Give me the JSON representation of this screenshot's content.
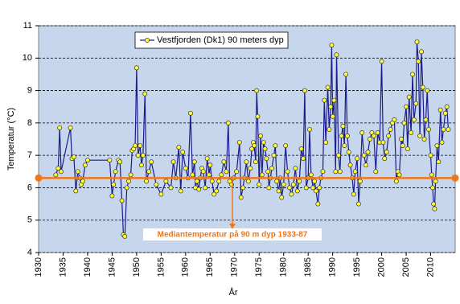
{
  "chart_data": {
    "type": "line",
    "x_label": "År",
    "y_label": "Temperatur (°C)",
    "xlim": [
      1930,
      2015
    ],
    "xticks": [
      1930,
      1935,
      1940,
      1945,
      1950,
      1955,
      1960,
      1965,
      1970,
      1975,
      1980,
      1985,
      1990,
      1995,
      2000,
      2005,
      2010
    ],
    "ylim": [
      4,
      11
    ],
    "yticks": [
      4,
      5,
      6,
      7,
      8,
      9,
      10,
      11
    ],
    "grid": true,
    "legend": "top",
    "median": 6.3,
    "median_color": "#f07818",
    "median_label": "Mediantemperatur  på 90 m dyp 1933-87",
    "series": [
      {
        "name": "Vestfjorden (Dk1) 90 meters dyp",
        "color": "#1c1c8c",
        "marker_color": "#ffff33",
        "x": [
          1933.5,
          1934,
          1934.3,
          1934.6,
          1936.5,
          1936.8,
          1937.2,
          1937.6,
          1938,
          1938.4,
          1938.7,
          1939,
          1939.5,
          1940,
          1944.5,
          1945,
          1945.3,
          1945.7,
          1946.3,
          1946.6,
          1947,
          1947.3,
          1947.6,
          1948,
          1948.4,
          1948.8,
          1949.1,
          1949.4,
          1949.7,
          1950,
          1950.3,
          1950.7,
          1951,
          1951.3,
          1951.7,
          1952,
          1952.5,
          1953,
          1954,
          1955,
          1956,
          1957,
          1957.5,
          1958,
          1958.6,
          1959,
          1959.4,
          1960,
          1960.5,
          1961,
          1961.4,
          1961.8,
          1962,
          1962.3,
          1962.7,
          1963,
          1963.3,
          1963.6,
          1964,
          1964.4,
          1964.8,
          1965,
          1965.4,
          1965.8,
          1966.3,
          1966.8,
          1967.3,
          1967.8,
          1968.3,
          1968.7,
          1969,
          1969.4,
          1969.8,
          1970.4,
          1971,
          1971.3,
          1971.7,
          1972,
          1972.4,
          1972.8,
          1973.2,
          1973.5,
          1973.8,
          1974,
          1974.3,
          1974.5,
          1974.7,
          1975,
          1975.3,
          1975.6,
          1975.9,
          1976.2,
          1976.5,
          1976.8,
          1977,
          1977.3,
          1977.6,
          1978,
          1978.3,
          1978.6,
          1979,
          1979.3,
          1979.6,
          1980,
          1980.4,
          1980.8,
          1981.2,
          1981.6,
          1982,
          1982.4,
          1982.8,
          1983.2,
          1983.6,
          1984,
          1984.3,
          1984.6,
          1985,
          1985.3,
          1985.6,
          1986,
          1986.3,
          1986.6,
          1987,
          1987.3,
          1987.6,
          1988,
          1988.3,
          1988.6,
          1989,
          1989.3,
          1989.6,
          1989.8,
          1990,
          1990.3,
          1990.6,
          1990.8,
          1991.2,
          1991.5,
          1991.8,
          1992.1,
          1992.4,
          1992.7,
          1993,
          1993.3,
          1993.6,
          1994,
          1994.3,
          1994.6,
          1995,
          1995.3,
          1995.6,
          1996,
          1996.4,
          1996.8,
          1997.2,
          1997.6,
          1998,
          1998.4,
          1998.8,
          1999.2,
          1999.6,
          2000,
          2000.3,
          2000.6,
          2001,
          2001.4,
          2001.8,
          2002.2,
          2002.6,
          2003,
          2003.3,
          2003.6,
          2004,
          2004.3,
          2004.6,
          2005,
          2005.3,
          2005.6,
          2006,
          2006.3,
          2006.6,
          2007,
          2007.2,
          2007.5,
          2007.8,
          2008.1,
          2008.4,
          2008.7,
          2009,
          2009.3,
          2009.6,
          2010,
          2010.2,
          2010.4,
          2010.6,
          2010.8,
          2011,
          2011.3,
          2011.6,
          2012,
          2012.3,
          2012.6,
          2013,
          2013.3,
          2013.6
        ],
        "values": [
          6.4,
          6.6,
          7.85,
          6.5,
          7.85,
          6.9,
          6.95,
          5.9,
          6.5,
          6.3,
          6.1,
          6.2,
          6.7,
          6.85,
          6.85,
          5.75,
          6.1,
          6.5,
          6.85,
          6.8,
          5.6,
          4.55,
          4.5,
          6.0,
          6.2,
          6.4,
          7.15,
          7.2,
          7.3,
          9.7,
          7.0,
          7.3,
          6.7,
          7.0,
          8.9,
          6.2,
          6.5,
          6.8,
          6.1,
          5.8,
          6.2,
          6.0,
          6.8,
          6.3,
          7.25,
          5.9,
          7.1,
          6.6,
          6.3,
          8.3,
          6.4,
          6.8,
          6.0,
          6.2,
          5.95,
          6.3,
          6.6,
          6.5,
          6.0,
          6.9,
          6.4,
          6.7,
          6.2,
          5.8,
          5.9,
          6.2,
          6.4,
          6.8,
          6.5,
          8.0,
          6.2,
          6.1,
          6.3,
          6.5,
          7.4,
          5.7,
          6.0,
          6.3,
          6.8,
          6.2,
          6.6,
          7.2,
          7.4,
          7.3,
          6.8,
          9.0,
          8.2,
          6.1,
          7.6,
          6.4,
          7.4,
          7.2,
          6.9,
          6.5,
          6.0,
          6.3,
          6.6,
          7.0,
          7.3,
          6.2,
          5.9,
          6.3,
          5.7,
          6.1,
          7.3,
          6.5,
          6.0,
          5.8,
          6.1,
          6.6,
          5.9,
          6.2,
          7.2,
          6.9,
          9.0,
          6.0,
          6.3,
          7.8,
          6.4,
          6.0,
          6.2,
          5.9,
          5.5,
          6.0,
          6.3,
          6.5,
          8.7,
          7.4,
          9.1,
          7.8,
          8.5,
          10.4,
          8.2,
          8.7,
          6.5,
          10.1,
          7.0,
          6.5,
          7.6,
          7.9,
          7.3,
          9.5,
          7.6,
          7.1,
          6.7,
          6.3,
          5.8,
          6.5,
          6.9,
          5.5,
          6.2,
          7.7,
          7.0,
          6.7,
          7.1,
          7.5,
          7.7,
          7.6,
          6.5,
          7.7,
          7.4,
          9.9,
          7.4,
          6.9,
          7.1,
          7.6,
          7.8,
          8.0,
          8.1,
          6.2,
          6.5,
          6.4,
          7.5,
          7.3,
          8.0,
          8.5,
          7.2,
          8.8,
          7.7,
          9.5,
          8.1,
          8.6,
          10.5,
          9.9,
          7.6,
          10.2,
          9.1,
          7.5,
          8.1,
          9.0,
          7.8,
          7.0,
          6.4,
          6.0,
          5.5,
          5.35,
          6.2,
          7.3,
          6.8,
          8.4,
          7.4,
          7.8,
          8.3,
          8.5,
          7.8
        ]
      }
    ]
  }
}
